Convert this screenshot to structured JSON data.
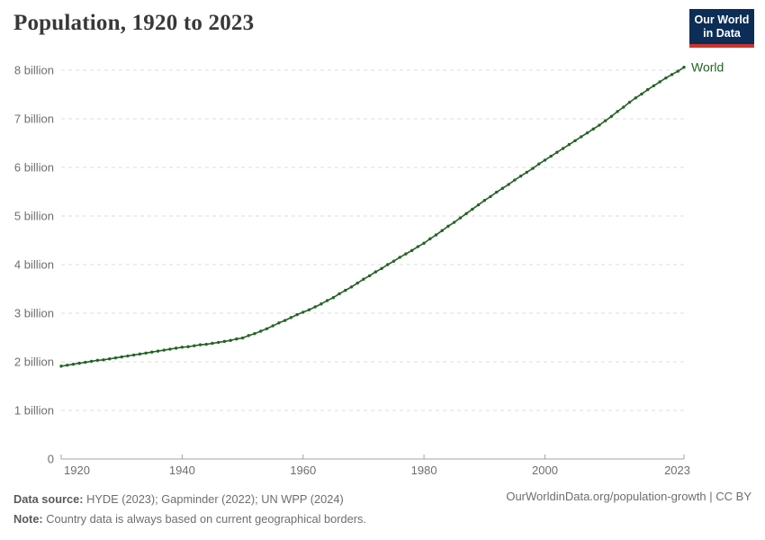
{
  "header": {
    "title": "Population, 1920 to 2023",
    "logo_line1": "Our World",
    "logo_line2": "in Data"
  },
  "colors": {
    "line": "#256325",
    "grid": "#dcdcdc",
    "axis": "#a3a3a3",
    "tick_text": "#6e6e6e",
    "logo_navy": "#0c2d56",
    "logo_red": "#cb342d",
    "title_text": "#383838"
  },
  "chart_data": {
    "type": "line",
    "title": "Population, 1920 to 2023",
    "xlabel": "",
    "ylabel": "",
    "x_range": [
      1920,
      2023
    ],
    "ylim": [
      0,
      8
    ],
    "grid": "horizontal dashed",
    "legend_position": "end-of-line label",
    "y_ticks": [
      {
        "value": 0,
        "label": "0"
      },
      {
        "value": 1,
        "label": "1 billion"
      },
      {
        "value": 2,
        "label": "2 billion"
      },
      {
        "value": 3,
        "label": "3 billion"
      },
      {
        "value": 4,
        "label": "4 billion"
      },
      {
        "value": 5,
        "label": "5 billion"
      },
      {
        "value": 6,
        "label": "6 billion"
      },
      {
        "value": 7,
        "label": "7 billion"
      },
      {
        "value": 8,
        "label": "8 billion"
      }
    ],
    "x_ticks": [
      {
        "value": 1920,
        "label": "1920"
      },
      {
        "value": 1940,
        "label": "1940"
      },
      {
        "value": 1960,
        "label": "1960"
      },
      {
        "value": 1980,
        "label": "1980"
      },
      {
        "value": 2000,
        "label": "2000"
      },
      {
        "value": 2023,
        "label": "2023"
      }
    ],
    "unit": "billion people",
    "series": [
      {
        "name": "World",
        "years": [
          1920,
          1921,
          1922,
          1923,
          1924,
          1925,
          1926,
          1927,
          1928,
          1929,
          1930,
          1931,
          1932,
          1933,
          1934,
          1935,
          1936,
          1937,
          1938,
          1939,
          1940,
          1941,
          1942,
          1943,
          1944,
          1945,
          1946,
          1947,
          1948,
          1949,
          1950,
          1951,
          1952,
          1953,
          1954,
          1955,
          1956,
          1957,
          1958,
          1959,
          1960,
          1961,
          1962,
          1963,
          1964,
          1965,
          1966,
          1967,
          1968,
          1969,
          1970,
          1971,
          1972,
          1973,
          1974,
          1975,
          1976,
          1977,
          1978,
          1979,
          1980,
          1981,
          1982,
          1983,
          1984,
          1985,
          1986,
          1987,
          1988,
          1989,
          1990,
          1991,
          1992,
          1993,
          1994,
          1995,
          1996,
          1997,
          1998,
          1999,
          2000,
          2001,
          2002,
          2003,
          2004,
          2005,
          2006,
          2007,
          2008,
          2009,
          2010,
          2011,
          2012,
          2013,
          2014,
          2015,
          2016,
          2017,
          2018,
          2019,
          2020,
          2021,
          2022,
          2023
        ],
        "values": [
          1.91,
          1.93,
          1.95,
          1.97,
          1.99,
          2.01,
          2.03,
          2.04,
          2.06,
          2.08,
          2.1,
          2.12,
          2.14,
          2.16,
          2.18,
          2.2,
          2.22,
          2.24,
          2.26,
          2.28,
          2.3,
          2.31,
          2.33,
          2.35,
          2.36,
          2.38,
          2.4,
          2.42,
          2.44,
          2.47,
          2.49,
          2.54,
          2.58,
          2.63,
          2.68,
          2.74,
          2.8,
          2.85,
          2.91,
          2.97,
          3.02,
          3.07,
          3.13,
          3.19,
          3.26,
          3.32,
          3.4,
          3.47,
          3.54,
          3.62,
          3.7,
          3.77,
          3.85,
          3.92,
          4.0,
          4.07,
          4.15,
          4.22,
          4.29,
          4.37,
          4.44,
          4.53,
          4.61,
          4.7,
          4.79,
          4.87,
          4.96,
          5.05,
          5.14,
          5.23,
          5.32,
          5.4,
          5.49,
          5.57,
          5.65,
          5.74,
          5.82,
          5.9,
          5.98,
          6.07,
          6.15,
          6.23,
          6.31,
          6.39,
          6.47,
          6.55,
          6.63,
          6.71,
          6.79,
          6.87,
          6.96,
          7.05,
          7.15,
          7.24,
          7.34,
          7.43,
          7.51,
          7.6,
          7.68,
          7.76,
          7.84,
          7.91,
          7.98,
          8.06
        ]
      }
    ]
  },
  "footer": {
    "source_label": "Data source:",
    "source_text": " HYDE (2023); Gapminder (2022); UN WPP (2024)",
    "note_label": "Note:",
    "note_text": " Country data is always based on current geographical borders.",
    "right_text": "OurWorldinData.org/population-growth | CC BY"
  }
}
